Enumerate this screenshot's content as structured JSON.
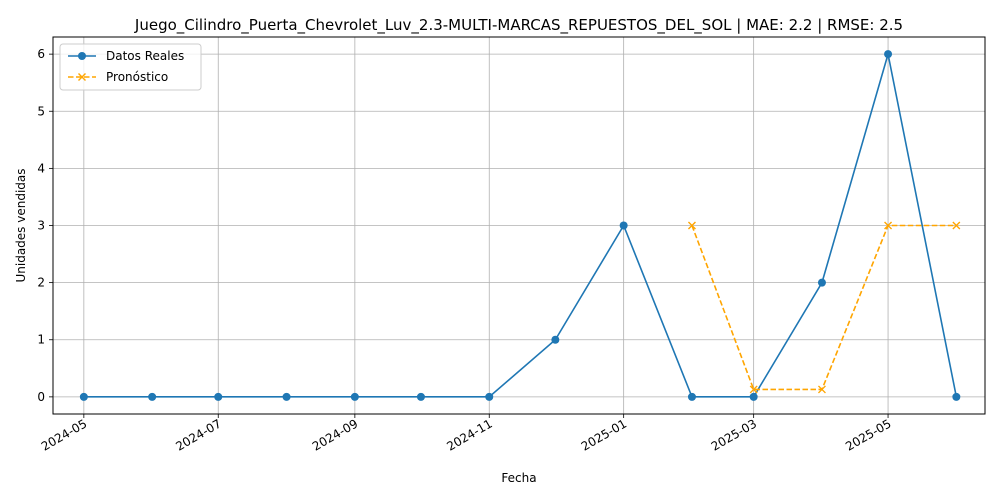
{
  "chart_data": {
    "type": "line",
    "title": "Juego_Cilindro_Puerta_Chevrolet_Luv_2.3-MULTI-MARCAS_REPUESTOS_DEL_SOL | MAE: 2.2 | RMSE: 2.5",
    "xlabel": "Fecha",
    "ylabel": "Unidades vendidas",
    "grid": true,
    "legend_position": "top-left",
    "ylim": [
      -0.3,
      6.3
    ],
    "xlim": [
      "2024-04-17",
      "2025-06-14"
    ],
    "x_ticks": [
      "2024-05-01",
      "2024-07-01",
      "2024-09-01",
      "2024-11-01",
      "2025-01-01",
      "2025-03-01",
      "2025-05-01"
    ],
    "x_tick_labels": [
      "2024-05",
      "2024-07",
      "2024-09",
      "2024-11",
      "2025-01",
      "2025-03",
      "2025-05"
    ],
    "y_ticks": [
      0,
      1,
      2,
      3,
      4,
      5,
      6
    ],
    "y_tick_labels": [
      "0",
      "1",
      "2",
      "3",
      "4",
      "5",
      "6"
    ],
    "series": [
      {
        "name": "Datos Reales",
        "color": "#1f77b4",
        "style": "solid",
        "marker": "circle",
        "x": [
          "2024-05-01",
          "2024-06-01",
          "2024-07-01",
          "2024-08-01",
          "2024-09-01",
          "2024-10-01",
          "2024-11-01",
          "2024-12-01",
          "2025-01-01",
          "2025-02-01",
          "2025-03-01",
          "2025-04-01",
          "2025-05-01",
          "2025-06-01"
        ],
        "values": [
          0,
          0,
          0,
          0,
          0,
          0,
          0,
          1,
          3,
          0,
          0,
          2,
          6,
          0
        ]
      },
      {
        "name": "Pronóstico",
        "color": "#ffa500",
        "style": "dashed",
        "marker": "x",
        "x": [
          "2025-02-01",
          "2025-03-01",
          "2025-04-01",
          "2025-05-01",
          "2025-06-01"
        ],
        "values": [
          3.0,
          0.13,
          0.13,
          3.0,
          3.0
        ]
      }
    ]
  }
}
